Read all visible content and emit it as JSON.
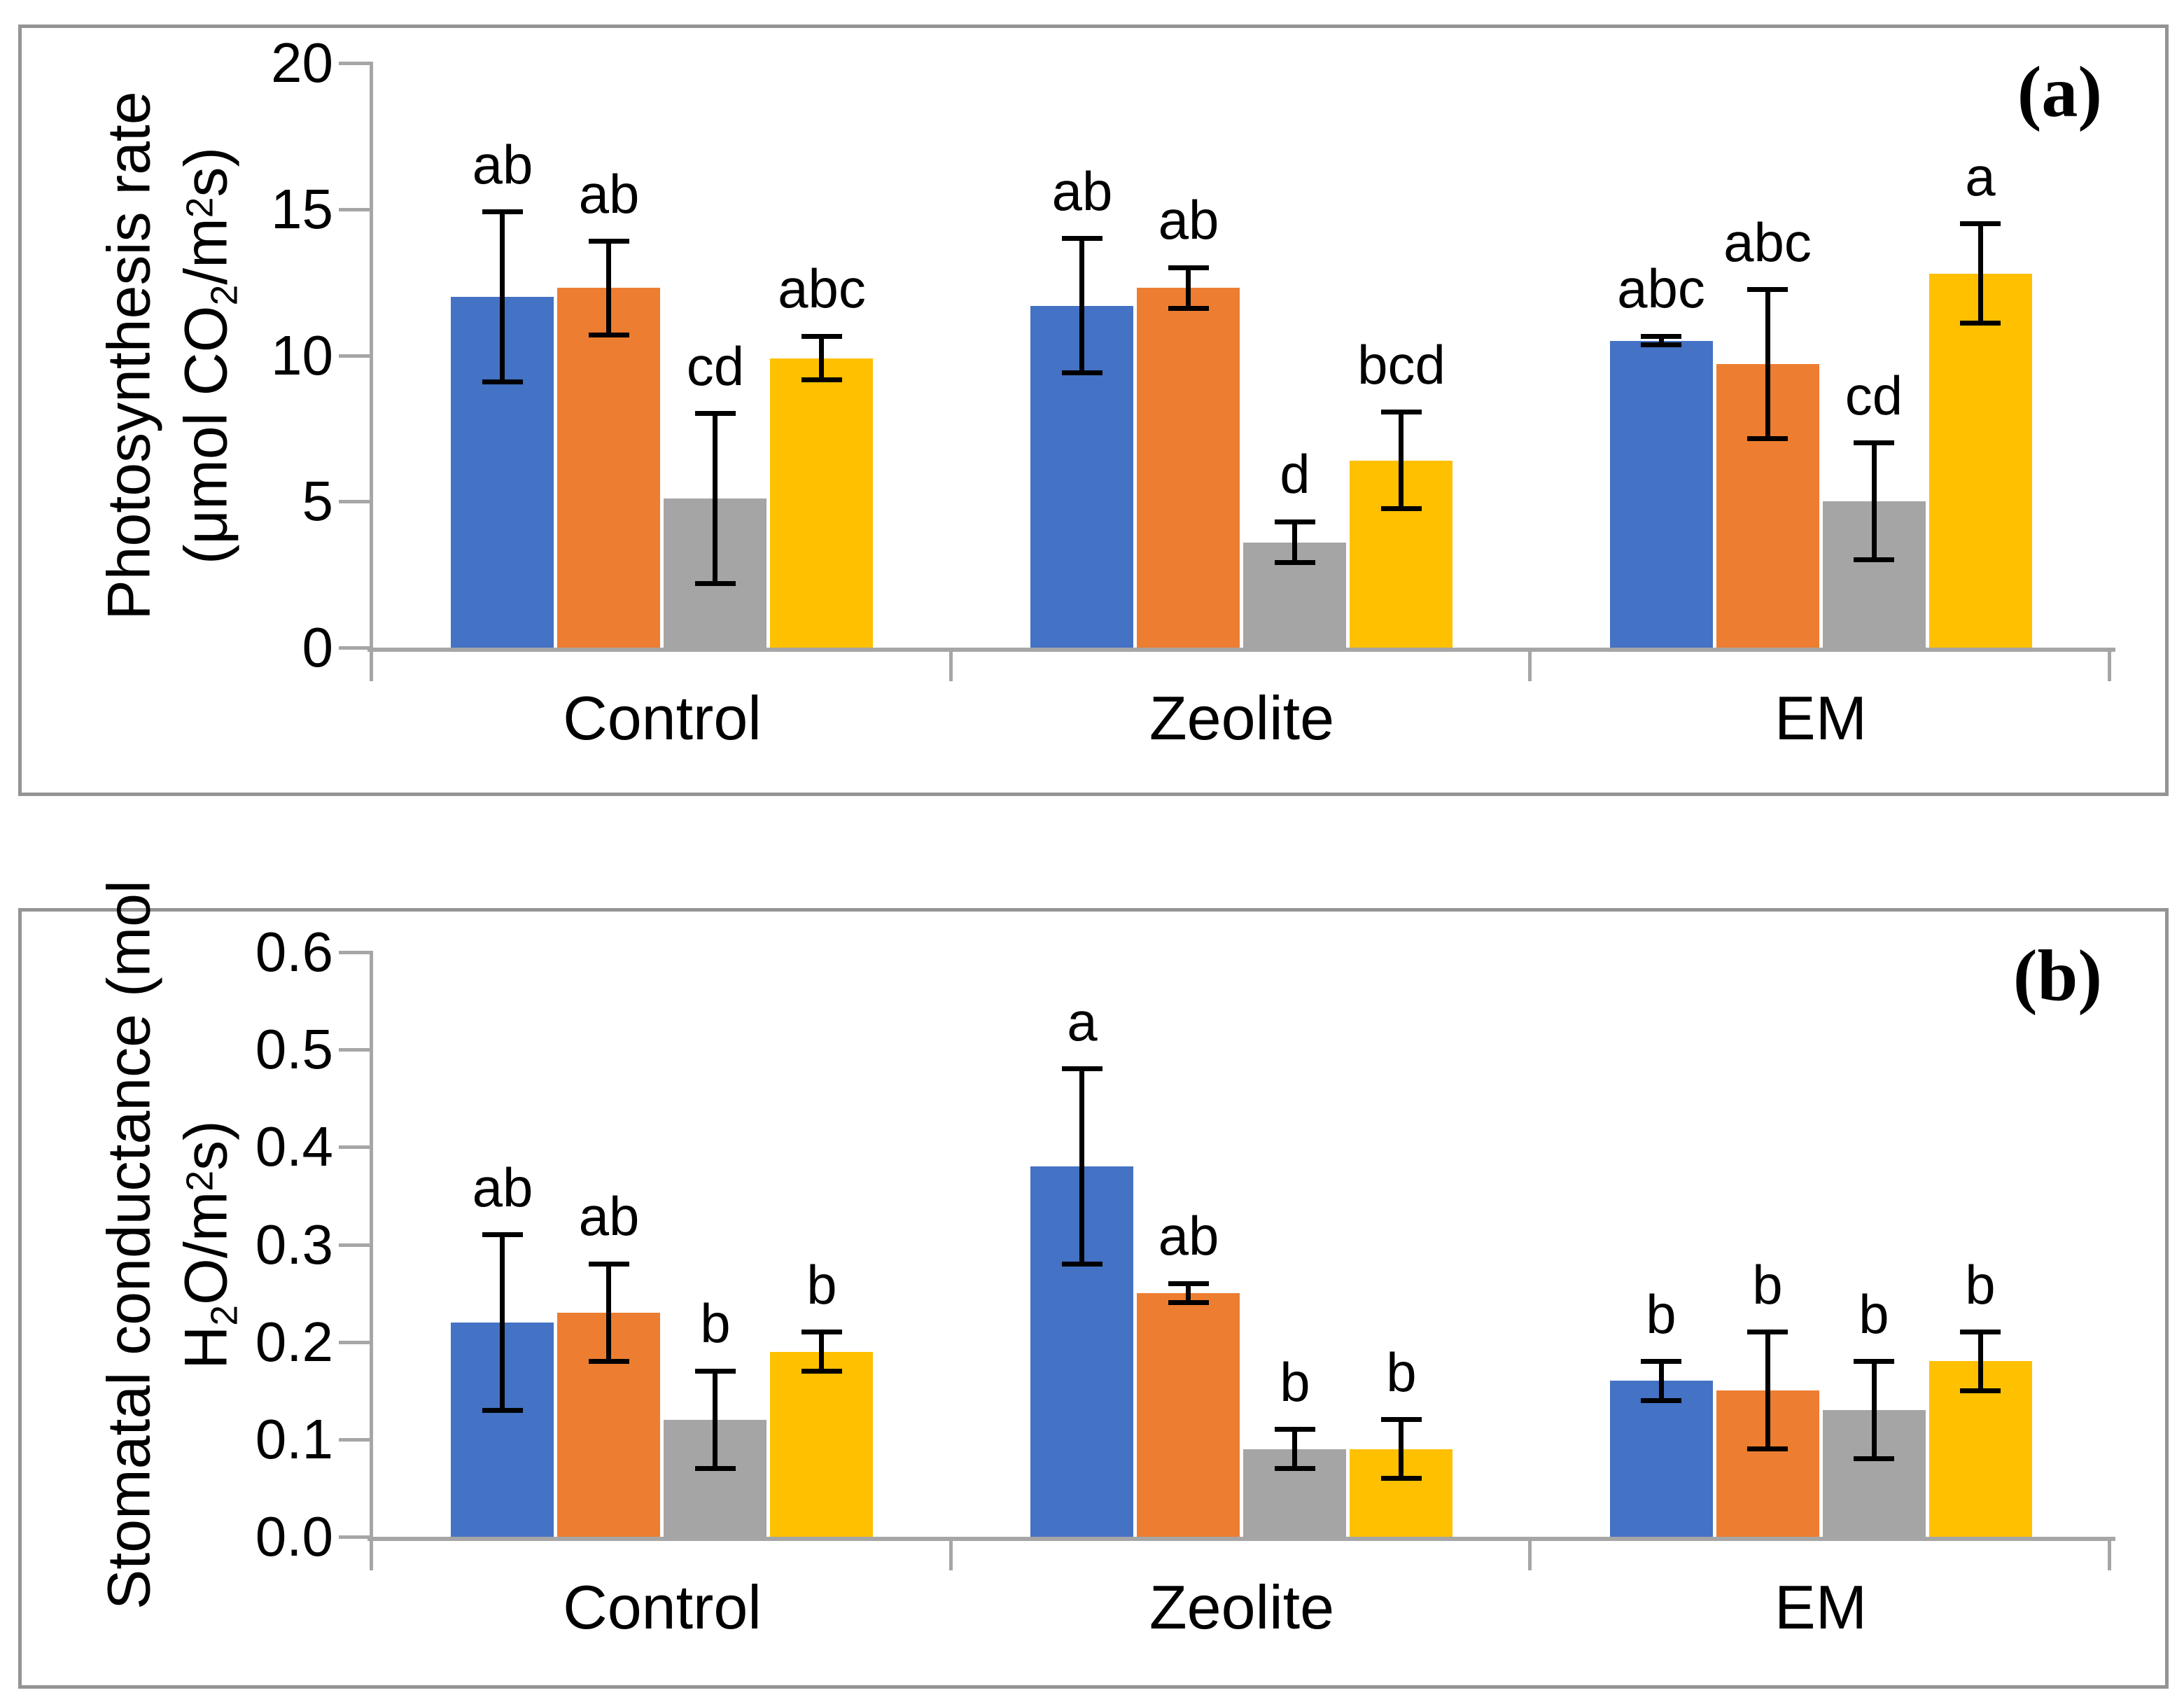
{
  "chart_data": [
    {
      "panel_label": "(a)",
      "type": "bar",
      "ylabel_lines": [
        "Photosynthesis rate",
        "(μmol CO_2/m^2s)"
      ],
      "ylim": [
        0,
        20
      ],
      "yticks": [
        "0",
        "5",
        "10",
        "15",
        "20"
      ],
      "categories": [
        "Control",
        "Zeolite",
        "EM"
      ],
      "grid": false,
      "legend": "none",
      "series": [
        {
          "key": "blue",
          "color": "#4472C4",
          "values": [
            12.0,
            11.7,
            10.5
          ],
          "errors": [
            2.9,
            2.3,
            0.15
          ],
          "letters": [
            "ab",
            "ab",
            "abc"
          ]
        },
        {
          "key": "orange",
          "color": "#ED7D31",
          "values": [
            12.3,
            12.3,
            9.7
          ],
          "errors": [
            1.6,
            0.7,
            2.55
          ],
          "letters": [
            "ab",
            "ab",
            "abc"
          ]
        },
        {
          "key": "gray",
          "color": "#A5A5A5",
          "values": [
            5.1,
            3.6,
            5.0
          ],
          "errors": [
            2.9,
            0.7,
            2.0
          ],
          "letters": [
            "cd",
            "d",
            "cd"
          ]
        },
        {
          "key": "yellow",
          "color": "#FFC000",
          "values": [
            9.9,
            6.4,
            12.8
          ],
          "errors": [
            0.75,
            1.65,
            1.7
          ],
          "letters": [
            "abc",
            "bcd",
            "a"
          ]
        }
      ]
    },
    {
      "panel_label": "(b)",
      "type": "bar",
      "ylabel_lines": [
        "Stomatal conductance (mol",
        "H_2O/m^2s)"
      ],
      "ylim": [
        0,
        0.6
      ],
      "yticks": [
        "0.0",
        "0.1",
        "0.2",
        "0.3",
        "0.4",
        "0.5",
        "0.6"
      ],
      "categories": [
        "Control",
        "Zeolite",
        "EM"
      ],
      "grid": false,
      "legend": "none",
      "series": [
        {
          "key": "blue",
          "color": "#4472C4",
          "values": [
            0.22,
            0.38,
            0.16
          ],
          "errors": [
            0.09,
            0.1,
            0.02
          ],
          "letters": [
            "ab",
            "a",
            "b"
          ]
        },
        {
          "key": "orange",
          "color": "#ED7D31",
          "values": [
            0.23,
            0.25,
            0.15
          ],
          "errors": [
            0.05,
            0.01,
            0.06
          ],
          "letters": [
            "ab",
            "ab",
            "b"
          ]
        },
        {
          "key": "gray",
          "color": "#A5A5A5",
          "values": [
            0.12,
            0.09,
            0.13
          ],
          "errors": [
            0.05,
            0.02,
            0.05
          ],
          "letters": [
            "b",
            "b",
            "b"
          ]
        },
        {
          "key": "yellow",
          "color": "#FFC000",
          "values": [
            0.19,
            0.09,
            0.18
          ],
          "errors": [
            0.02,
            0.03,
            0.03
          ],
          "letters": [
            "b",
            "b",
            "b"
          ]
        }
      ]
    }
  ],
  "style_colors": {
    "axis": "#A6A6A6",
    "panel_border": "#949494",
    "error_bar": "#000000",
    "text": "#000000"
  }
}
